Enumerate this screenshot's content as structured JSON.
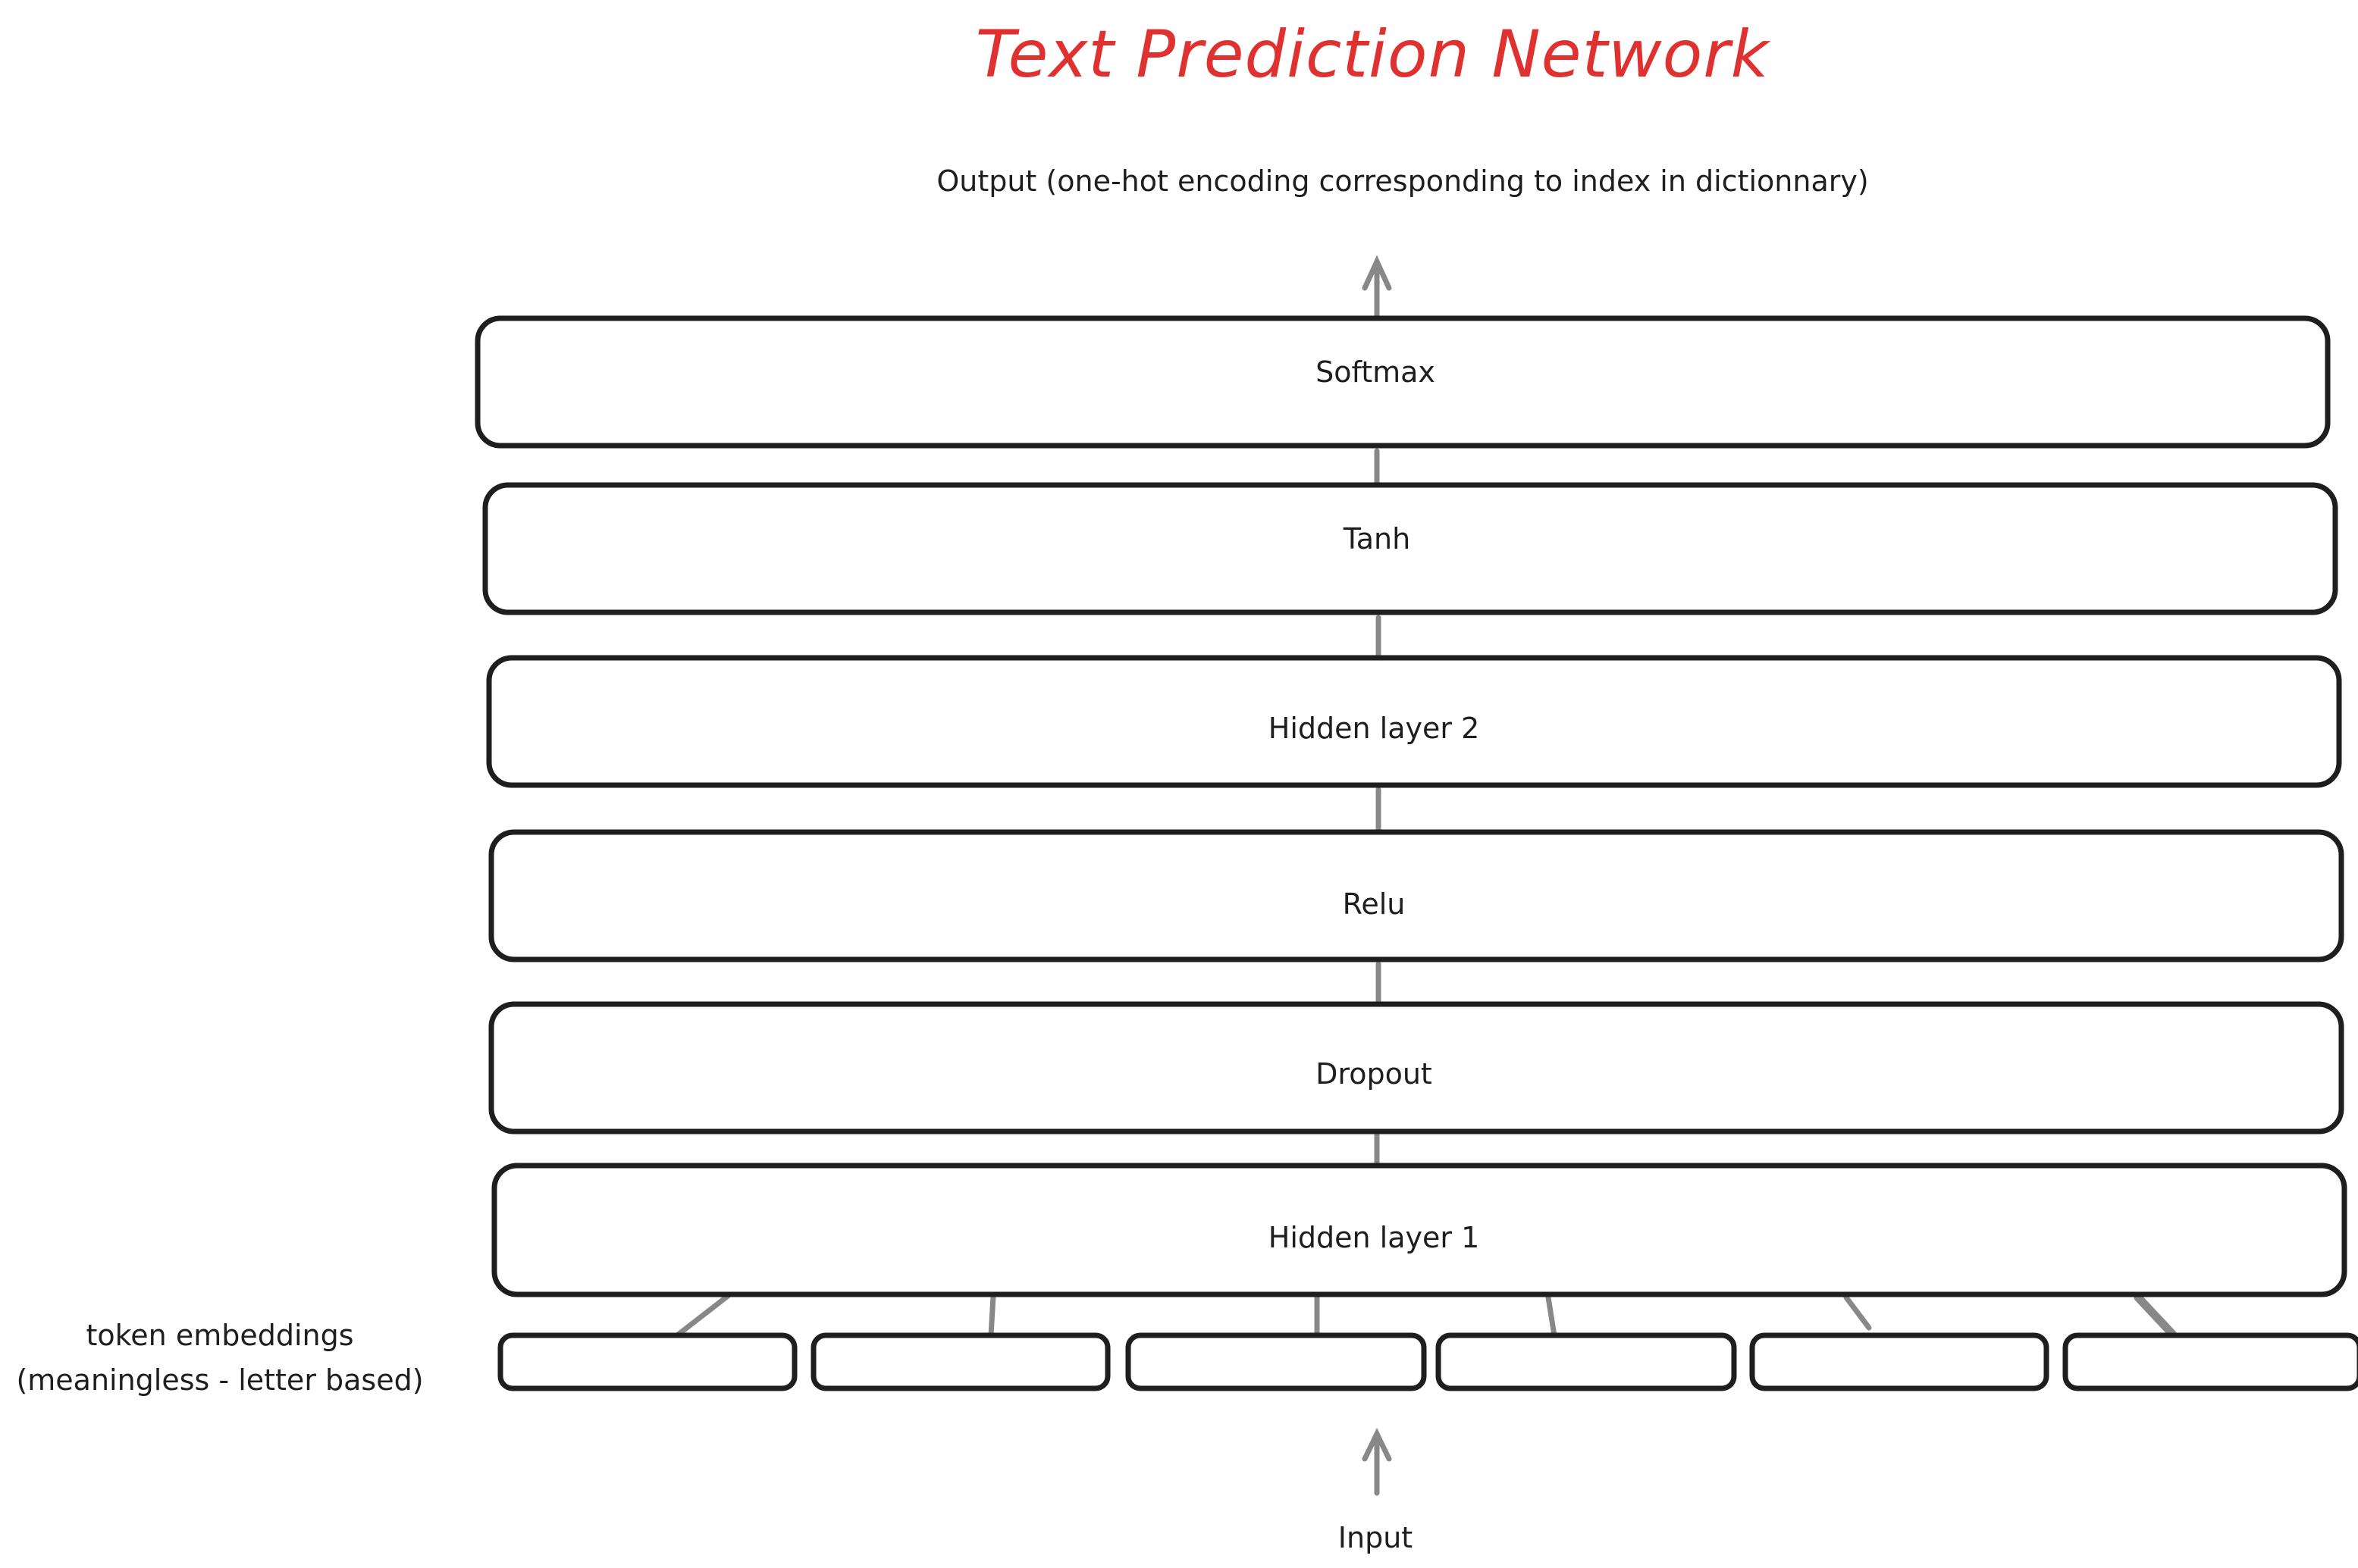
{
  "title": "Text Prediction Network",
  "output_label": "Output (one-hot encoding corresponding to index in dictionnary)",
  "input_label": "Input",
  "token_embeddings": {
    "line1": "token embeddings",
    "line2": "(meaningless - letter based)"
  },
  "layers": [
    {
      "label": "Softmax"
    },
    {
      "label": "Tanh"
    },
    {
      "label": "Hidden layer 2"
    },
    {
      "label": "Relu"
    },
    {
      "label": "Dropout"
    },
    {
      "label": "Hidden layer 1"
    }
  ],
  "token_count": 6,
  "colors": {
    "title": "#e03131",
    "stroke": "#1e1e1e",
    "connector": "#888888"
  }
}
